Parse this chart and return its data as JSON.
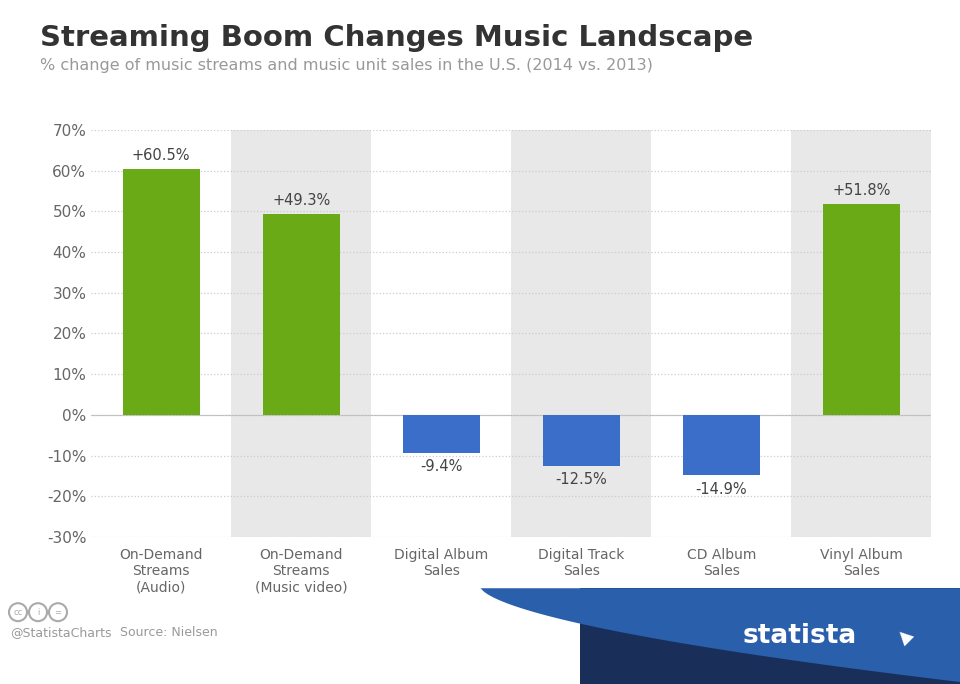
{
  "title": "Streaming Boom Changes Music Landscape",
  "subtitle": "% change of music streams and music unit sales in the U.S. (2014 vs. 2013)",
  "categories": [
    "On-Demand\nStreams\n(Audio)",
    "On-Demand\nStreams\n(Music video)",
    "Digital Album\nSales",
    "Digital Track\nSales",
    "CD Album\nSales",
    "Vinyl Album\nSales"
  ],
  "values": [
    60.5,
    49.3,
    -9.4,
    -12.5,
    -14.9,
    51.8
  ],
  "bar_colors": [
    "#6aaa16",
    "#6aaa16",
    "#3a6ec8",
    "#3a6ec8",
    "#3a6ec8",
    "#6aaa16"
  ],
  "labels": [
    "+60.5%",
    "+49.3%",
    "-9.4%",
    "-12.5%",
    "-14.9%",
    "+51.8%"
  ],
  "ylim": [
    -30,
    70
  ],
  "yticks": [
    -30,
    -20,
    -10,
    0,
    10,
    20,
    30,
    40,
    50,
    60,
    70
  ],
  "bg_color": "#ffffff",
  "col_bg_colors": [
    "#ffffff",
    "#e8e8e8",
    "#ffffff",
    "#e8e8e8",
    "#ffffff",
    "#e8e8e8"
  ],
  "grid_color": "#cccccc",
  "title_color": "#333333",
  "subtitle_color": "#999999",
  "tick_label_color": "#666666",
  "bar_label_color": "#444444",
  "statista_navy": "#1a2e5a",
  "statista_blue": "#2a5fac",
  "footer_color": "#999999"
}
